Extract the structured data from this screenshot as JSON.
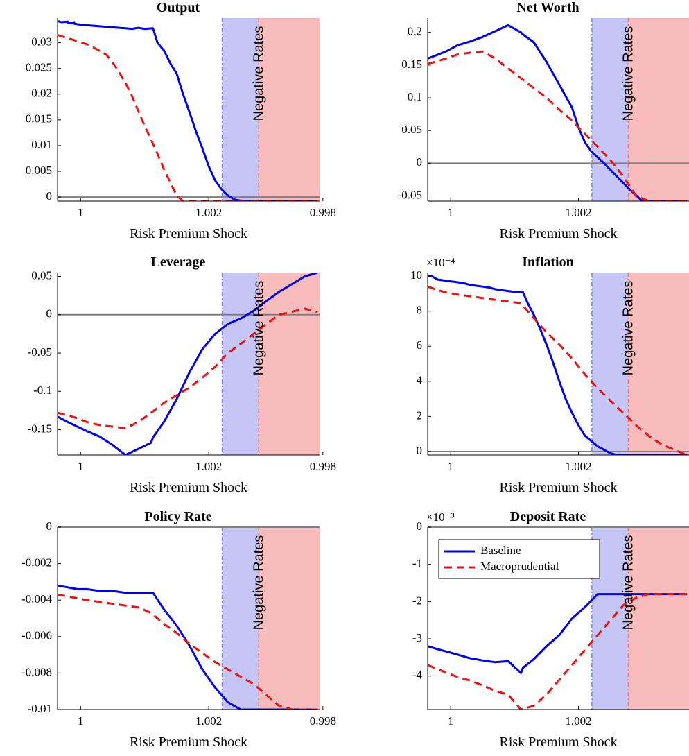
{
  "colors": {
    "baseline": "#0000ee",
    "macroprudential": "#ee1111",
    "blue_region": "#c6c6f6",
    "red_region": "#f9bcbc",
    "zero_line": "#808080"
  },
  "region_label": "Negative Rates",
  "legend": {
    "placement": "top-left of Deposit Rate panel",
    "entries": [
      "Baseline",
      "Macroprudential"
    ]
  },
  "chart_data": [
    {
      "id": "output",
      "type": "line",
      "title": "Output",
      "xlabel": "Risk Premium Shock",
      "ylabel": "",
      "xlim": [
        0.99964,
        1.00373
      ],
      "ylim": [
        -0.0008,
        0.0348
      ],
      "xticks": [
        0.998,
        1,
        1.002
      ],
      "xtick_labels": [
        "0.998",
        "1",
        "1.002"
      ],
      "yticks": [
        0,
        0.005,
        0.01,
        0.015,
        0.02,
        0.025,
        0.03
      ],
      "ytick_labels": [
        "0",
        "0.005",
        "0.01",
        "0.015",
        "0.02",
        "0.025",
        "0.03"
      ],
      "exponent": "",
      "blue_region": [
        1.00221,
        1.00278
      ],
      "red_region": [
        1.00278,
        1.00373
      ],
      "series": [
        {
          "name": "Baseline",
          "style": "solid",
          "x": [
            0.99964,
            0.9997,
            0.9998,
            0.9999,
            0.9998,
            0.99985,
            0.9999,
            0.99995,
            1.0,
            1.0001,
            1.0002,
            1.0003,
            1.0004,
            1.0005,
            1.0006,
            1.0007,
            1.0008,
            1.0009,
            1.001,
            1.00113,
            1.0012,
            1.0013,
            1.0014,
            1.0015,
            1.0016,
            1.0017,
            1.0018,
            1.0019,
            1.002,
            1.0021,
            1.0022,
            1.0023,
            1.0024,
            1.0025,
            1.0026,
            1.0027,
            1.0028,
            1.0029,
            1.003,
            1.0031,
            1.0032,
            1.0033,
            1.0034,
            1.0035,
            1.0036,
            1.0037
          ],
          "y": [
            0.0342,
            0.034,
            0.0341,
            0.034,
            0.0339,
            0.0338,
            0.0337,
            0.0336,
            0.0335,
            0.0334,
            0.0333,
            0.0332,
            0.0331,
            0.033,
            0.0329,
            0.0328,
            0.0327,
            0.0329,
            0.0327,
            0.0328,
            0.03,
            0.0285,
            0.026,
            0.024,
            0.02,
            0.0165,
            0.0128,
            0.0095,
            0.006,
            0.0032,
            0.0015,
            0.0003,
            -0.0005,
            -0.0007,
            -0.0008,
            -0.0008,
            -0.0008,
            -0.0008,
            -0.0008,
            -0.0008,
            -0.0008,
            -0.0008,
            -0.0008,
            -0.0008,
            -0.0008,
            -0.0008
          ]
        },
        {
          "name": "Macroprudential",
          "style": "dashed",
          "x": [
            0.99964,
            0.9998,
            0.99995,
            1.0001,
            1.0002,
            1.0003,
            1.0004,
            1.0005,
            1.0006,
            1.0007,
            1.0008,
            1.0009,
            1.001,
            1.0011,
            1.0012,
            1.0013,
            1.0014,
            1.0015,
            1.0016,
            1.0017,
            1.0018,
            1.0019,
            1.002,
            1.0021,
            1.0022,
            1.0023,
            1.0024,
            1.0025,
            1.0026,
            1.0027,
            1.0028,
            1.0029,
            1.003,
            1.0031,
            1.0032,
            1.0033,
            1.0034,
            1.0035,
            1.0036,
            1.0037
          ],
          "y": [
            0.0315,
            0.0309,
            0.0303,
            0.0297,
            0.0291,
            0.0284,
            0.0277,
            0.0262,
            0.0243,
            0.0222,
            0.0197,
            0.0168,
            0.0138,
            0.0112,
            0.0084,
            0.0055,
            0.0028,
            0.0003,
            -0.0008,
            -0.0008,
            -0.0008,
            -0.0008,
            -0.0008,
            -0.0008,
            -0.0008,
            -0.0008,
            -0.0008,
            -0.0008,
            -0.0008,
            -0.0008,
            -0.0008,
            -0.0008,
            -0.0008,
            -0.0008,
            -0.0008,
            -0.0008,
            -0.0008,
            -0.0008,
            -0.0008,
            -0.0008
          ]
        }
      ]
    },
    {
      "id": "networth",
      "type": "line",
      "title": "Net Worth",
      "xlabel": "Risk Premium Shock",
      "ylabel": "",
      "xlim": [
        0.99964,
        1.00373
      ],
      "ylim": [
        -0.058,
        0.222
      ],
      "xticks": [
        0.998,
        1,
        1.002
      ],
      "xtick_labels": [
        "0.998",
        "1",
        "1.002"
      ],
      "yticks": [
        -0.05,
        0,
        0.05,
        0.1,
        0.15,
        0.2
      ],
      "ytick_labels": [
        "-0.05",
        "0",
        "0.05",
        "0.1",
        "0.15",
        "0.2"
      ],
      "exponent": "",
      "blue_region": [
        1.00221,
        1.00278
      ],
      "red_region": [
        1.00278,
        1.00373
      ],
      "series": [
        {
          "name": "Baseline",
          "style": "solid",
          "x": [
            0.99964,
            0.9998,
            0.99995,
            1.0001,
            1.0003,
            1.0005,
            1.0007,
            1.0009,
            1.0011,
            1.00113,
            1.0013,
            1.0015,
            1.0017,
            1.0019,
            1.002,
            1.0021,
            1.0022,
            1.0024,
            1.0026,
            1.0028,
            1.003,
            1.0032,
            1.0034,
            1.0036,
            1.0037
          ],
          "y": [
            0.16,
            0.166,
            0.172,
            0.18,
            0.186,
            0.193,
            0.202,
            0.211,
            0.2,
            0.197,
            0.185,
            0.155,
            0.12,
            0.085,
            0.055,
            0.032,
            0.018,
            0.0,
            -0.02,
            -0.04,
            -0.058,
            -0.058,
            -0.058,
            -0.058,
            -0.058
          ]
        },
        {
          "name": "Macroprudential",
          "style": "dashed",
          "x": [
            0.99964,
            0.9998,
            0.99995,
            1.0001,
            1.0003,
            1.0005,
            1.0007,
            1.0009,
            1.0011,
            1.0013,
            1.0015,
            1.0017,
            1.0019,
            1.0021,
            1.0023,
            1.0025,
            1.0027,
            1.0029,
            1.0031,
            1.0033,
            1.0035,
            1.0037
          ],
          "y": [
            0.152,
            0.156,
            0.161,
            0.166,
            0.169,
            0.171,
            0.16,
            0.145,
            0.13,
            0.115,
            0.1,
            0.082,
            0.065,
            0.045,
            0.025,
            0.005,
            -0.02,
            -0.05,
            -0.058,
            -0.058,
            -0.058,
            -0.058
          ]
        }
      ]
    },
    {
      "id": "leverage",
      "type": "line",
      "title": "Leverage",
      "xlabel": "Risk Premium Shock",
      "ylabel": "",
      "xlim": [
        0.99964,
        1.00373
      ],
      "ylim": [
        -0.183,
        0.055
      ],
      "xticks": [
        0.998,
        1,
        1.002
      ],
      "xtick_labels": [
        "0.998",
        "1",
        "1.002"
      ],
      "yticks": [
        -0.15,
        -0.1,
        -0.05,
        0,
        0.05
      ],
      "ytick_labels": [
        "-0.15",
        "-0.1",
        "-0.05",
        "0",
        "0.05"
      ],
      "exponent": "",
      "blue_region": [
        1.00221,
        1.00278
      ],
      "red_region": [
        1.00278,
        1.00373
      ],
      "series": [
        {
          "name": "Baseline",
          "style": "solid",
          "x": [
            0.99964,
            0.9998,
            0.99995,
            1.0001,
            1.0003,
            1.0005,
            1.0007,
            1.0009,
            1.0011,
            1.00113,
            1.0013,
            1.0015,
            1.0017,
            1.0019,
            1.0021,
            1.0023,
            1.0025,
            1.0027,
            1.0029,
            1.0031,
            1.0033,
            1.0035,
            1.0037
          ],
          "y": [
            -0.133,
            -0.14,
            -0.146,
            -0.152,
            -0.159,
            -0.17,
            -0.183,
            -0.175,
            -0.167,
            -0.16,
            -0.14,
            -0.11,
            -0.075,
            -0.045,
            -0.025,
            -0.012,
            -0.005,
            0.005,
            0.018,
            0.03,
            0.04,
            0.05,
            0.055
          ]
        },
        {
          "name": "Macroprudential",
          "style": "dashed",
          "x": [
            0.99964,
            0.9998,
            0.99995,
            1.0001,
            1.0003,
            1.0005,
            1.0007,
            1.0009,
            1.0011,
            1.0013,
            1.0015,
            1.0017,
            1.0019,
            1.0021,
            1.0023,
            1.0025,
            1.0027,
            1.0029,
            1.0031,
            1.0033,
            1.0035,
            1.0037
          ],
          "y": [
            -0.128,
            -0.131,
            -0.135,
            -0.14,
            -0.144,
            -0.146,
            -0.148,
            -0.14,
            -0.128,
            -0.115,
            -0.105,
            -0.095,
            -0.082,
            -0.068,
            -0.05,
            -0.038,
            -0.025,
            -0.012,
            0.0,
            0.004,
            0.008,
            0.003
          ]
        }
      ]
    },
    {
      "id": "inflation",
      "type": "line",
      "title": "Inflation",
      "xlabel": "Risk Premium Shock",
      "ylabel": "",
      "xlim": [
        0.99964,
        1.00373
      ],
      "ylim": [
        -0.2,
        10.2
      ],
      "xticks": [
        0.998,
        1,
        1.002
      ],
      "xtick_labels": [
        "0.998",
        "1",
        "1.002"
      ],
      "yticks": [
        0,
        2,
        4,
        6,
        8,
        10
      ],
      "ytick_labels": [
        "0",
        "2",
        "4",
        "6",
        "8",
        "10"
      ],
      "exponent": "×10⁻⁴",
      "blue_region": [
        1.00221,
        1.00278
      ],
      "red_region": [
        1.00278,
        1.00373
      ],
      "series": [
        {
          "name": "Baseline",
          "style": "solid",
          "x": [
            0.99964,
            0.9997,
            0.9998,
            0.9999,
            1.0,
            1.0001,
            1.0002,
            1.0003,
            1.0004,
            1.0005,
            1.0006,
            1.0007,
            1.0008,
            1.0009,
            1.001,
            1.00113,
            1.0012,
            1.0013,
            1.0014,
            1.0015,
            1.0016,
            1.0017,
            1.0018,
            1.0019,
            1.002,
            1.0021,
            1.0022,
            1.0023,
            1.0024,
            1.0025,
            1.0026,
            1.0027,
            1.0028,
            1.0029,
            1.003,
            1.0031,
            1.0032,
            1.0033,
            1.0034,
            1.0035,
            1.0036,
            1.0037
          ],
          "y": [
            10.0,
            10.0,
            9.8,
            9.75,
            9.7,
            9.65,
            9.6,
            9.5,
            9.45,
            9.4,
            9.35,
            9.25,
            9.2,
            9.15,
            9.1,
            9.1,
            8.5,
            7.8,
            7.0,
            6.1,
            5.1,
            4.0,
            3.0,
            2.2,
            1.5,
            0.9,
            0.6,
            0.3,
            0.1,
            -0.1,
            -0.2,
            -0.2,
            -0.2,
            -0.2,
            -0.2,
            -0.2,
            -0.2,
            -0.2,
            -0.2,
            -0.2,
            -0.2,
            -0.2
          ]
        },
        {
          "name": "Macroprudential",
          "style": "dashed",
          "x": [
            0.99964,
            0.9998,
            0.99995,
            1.0001,
            1.0003,
            1.0005,
            1.0007,
            1.0009,
            1.0011,
            1.0013,
            1.0015,
            1.0017,
            1.0019,
            1.0021,
            1.0023,
            1.0025,
            1.0027,
            1.0029,
            1.0031,
            1.0033,
            1.0035,
            1.0037
          ],
          "y": [
            9.4,
            9.2,
            9.05,
            8.95,
            8.85,
            8.75,
            8.65,
            8.55,
            8.45,
            7.6,
            6.8,
            6.1,
            5.3,
            4.4,
            3.6,
            2.9,
            2.2,
            1.5,
            0.9,
            0.4,
            0.1,
            -0.2
          ]
        }
      ]
    },
    {
      "id": "policyrate",
      "type": "line",
      "title": "Policy Rate",
      "xlabel": "Risk Premium Shock",
      "ylabel": "",
      "xlim": [
        0.99964,
        1.00373
      ],
      "ylim": [
        -0.01,
        0.0
      ],
      "xticks": [
        0.998,
        1,
        1.002
      ],
      "xtick_labels": [
        "0.998",
        "1",
        "1.002"
      ],
      "yticks": [
        -0.01,
        -0.008,
        -0.006,
        -0.004,
        -0.002,
        0
      ],
      "ytick_labels": [
        "-0.01",
        "-0.008",
        "-0.006",
        "-0.004",
        "-0.002",
        "0"
      ],
      "exponent": "",
      "blue_region": [
        1.00221,
        1.00278
      ],
      "red_region": [
        1.00278,
        1.00373
      ],
      "series": [
        {
          "name": "Baseline",
          "style": "solid",
          "x": [
            0.99964,
            0.9998,
            0.99995,
            1.0001,
            1.0003,
            1.0005,
            1.0007,
            1.0009,
            1.0011,
            1.00113,
            1.0013,
            1.0015,
            1.0017,
            1.0019,
            1.0021,
            1.0023,
            1.0025,
            1.0027,
            1.0029,
            1.0031,
            1.0033,
            1.0035,
            1.0037
          ],
          "y": [
            -0.0032,
            -0.0033,
            -0.0034,
            -0.0034,
            -0.0035,
            -0.0035,
            -0.0036,
            -0.0036,
            -0.0036,
            -0.0036,
            -0.0045,
            -0.0054,
            -0.0065,
            -0.0078,
            -0.0088,
            -0.0096,
            -0.01,
            -0.01,
            -0.01,
            -0.01,
            -0.01,
            -0.01,
            -0.01
          ]
        },
        {
          "name": "Macroprudential",
          "style": "dashed",
          "x": [
            0.99964,
            0.9998,
            0.99995,
            1.0001,
            1.0003,
            1.0005,
            1.0007,
            1.0009,
            1.0011,
            1.0013,
            1.0015,
            1.0017,
            1.0019,
            1.0021,
            1.0023,
            1.0025,
            1.0027,
            1.0029,
            1.0031,
            1.0033,
            1.0035,
            1.0037
          ],
          "y": [
            -0.0037,
            -0.0038,
            -0.0039,
            -0.004,
            -0.0041,
            -0.0042,
            -0.0043,
            -0.0044,
            -0.0047,
            -0.0053,
            -0.0058,
            -0.0064,
            -0.0069,
            -0.0074,
            -0.0078,
            -0.0082,
            -0.0086,
            -0.0092,
            -0.0098,
            -0.01,
            -0.01,
            -0.01
          ]
        }
      ]
    },
    {
      "id": "depositrate",
      "type": "line",
      "title": "Deposit Rate",
      "xlabel": "Risk Premium Shock",
      "ylabel": "",
      "xlim": [
        0.99964,
        1.00373
      ],
      "ylim": [
        -4.9,
        0.0
      ],
      "xticks": [
        0.998,
        1,
        1.002
      ],
      "xtick_labels": [
        "0.998",
        "1",
        "1.002"
      ],
      "yticks": [
        -4,
        -3,
        -2,
        -1,
        0
      ],
      "ytick_labels": [
        "-4",
        "-3",
        "-2",
        "-1",
        "0"
      ],
      "exponent": "×10⁻³",
      "blue_region": [
        1.00221,
        1.00278
      ],
      "red_region": [
        1.00278,
        1.00373
      ],
      "series": [
        {
          "name": "Baseline",
          "style": "solid",
          "x": [
            0.99964,
            0.9998,
            0.99995,
            1.0001,
            1.0003,
            1.0005,
            1.0007,
            1.0009,
            1.0011,
            1.00113,
            1.0013,
            1.0015,
            1.0017,
            1.0019,
            1.0021,
            1.0023,
            1.0025,
            1.0027,
            1.0029,
            1.0031,
            1.0033,
            1.0035,
            1.0037
          ],
          "y": [
            -3.2,
            -3.28,
            -3.35,
            -3.42,
            -3.52,
            -3.58,
            -3.63,
            -3.6,
            -3.92,
            -3.78,
            -3.55,
            -3.2,
            -2.9,
            -2.45,
            -2.15,
            -1.8,
            -1.8,
            -1.8,
            -1.8,
            -1.8,
            -1.8,
            -1.8,
            -1.8
          ]
        },
        {
          "name": "Macroprudential",
          "style": "dashed",
          "x": [
            0.99964,
            0.9998,
            0.99995,
            1.0001,
            1.0003,
            1.0005,
            1.0007,
            1.0009,
            1.0011,
            1.0013,
            1.0015,
            1.0017,
            1.0019,
            1.0021,
            1.0023,
            1.0025,
            1.0027,
            1.0029,
            1.0031,
            1.0033,
            1.0035,
            1.0037
          ],
          "y": [
            -3.7,
            -3.82,
            -3.92,
            -4.02,
            -4.12,
            -4.25,
            -4.4,
            -4.5,
            -4.9,
            -4.8,
            -4.5,
            -4.1,
            -3.7,
            -3.3,
            -2.9,
            -2.5,
            -2.1,
            -1.9,
            -1.8,
            -1.8,
            -1.8,
            -1.8
          ]
        }
      ]
    }
  ]
}
